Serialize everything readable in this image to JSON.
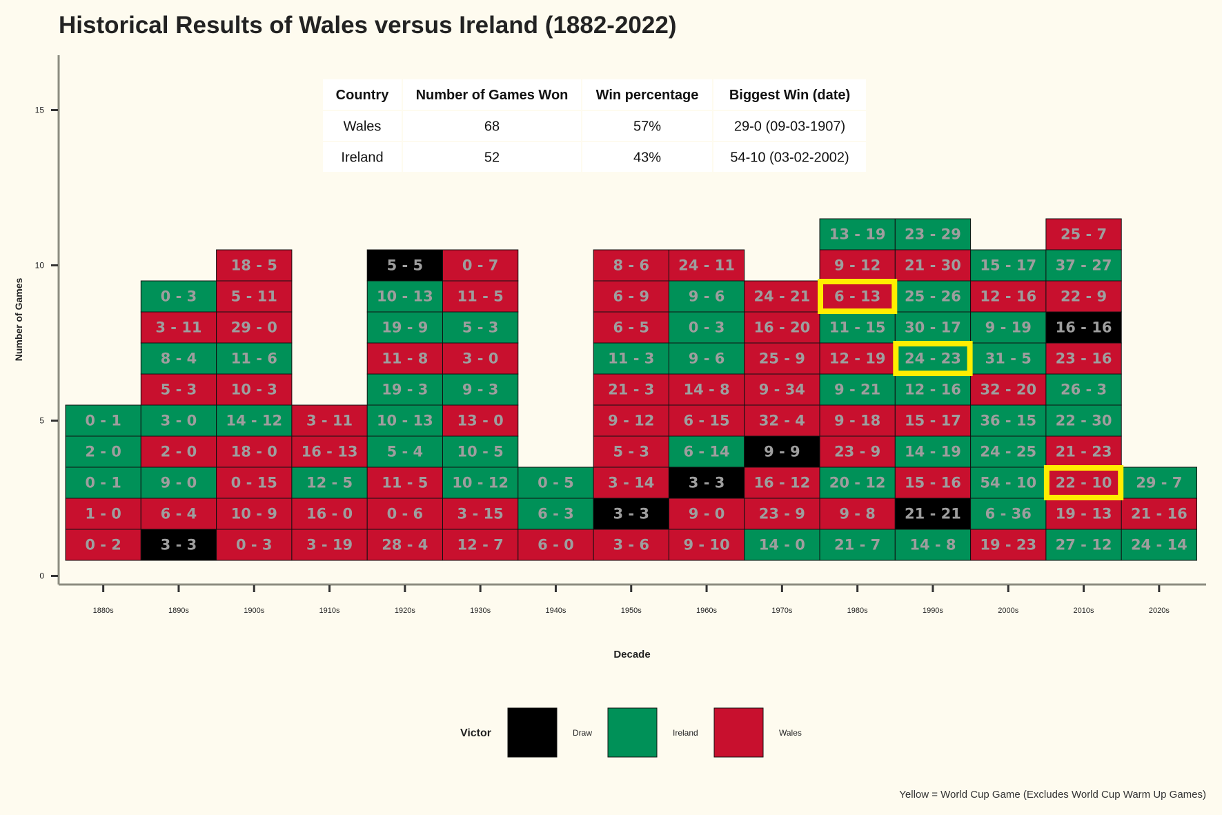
{
  "chart_data": {
    "type": "heatmap",
    "title": "Historical Results of Wales versus Ireland (1882-2022)",
    "xlabel": "Decade",
    "ylabel": "Number of Games",
    "ylim": [
      0,
      16.5
    ],
    "yticks": [
      0,
      5,
      10,
      15
    ],
    "grid": false,
    "legend_placement": "bottom",
    "legend": {
      "title": "Victor",
      "items": [
        {
          "label": "Draw",
          "color": "#000000"
        },
        {
          "label": "Ireland",
          "color": "#009158"
        },
        {
          "label": "Wales",
          "color": "#c8102e"
        }
      ]
    },
    "colors": {
      "D": "#000000",
      "I": "#009158",
      "W": "#c8102e",
      "highlight": "#ffee00",
      "label_text": "#9e9e9e"
    },
    "footnote": "Yellow = World Cup Game (Excludes World Cup Warm Up Games)",
    "summary_table": {
      "headers": [
        "Country",
        "Number of Games Won",
        "Win percentage",
        "Biggest Win (date)"
      ],
      "rows": [
        [
          "Wales",
          "68",
          "57%",
          "29-0 (09-03-1907)"
        ],
        [
          "Ireland",
          "52",
          "43%",
          "54-10 (03-02-2002)"
        ]
      ]
    },
    "decades": [
      {
        "label": "1880s",
        "games": [
          {
            "score": "0 - 2",
            "victor": "W"
          },
          {
            "score": "1 - 0",
            "victor": "W"
          },
          {
            "score": "0 - 1",
            "victor": "I"
          },
          {
            "score": "2 - 0",
            "victor": "I"
          },
          {
            "score": "0 - 1",
            "victor": "I"
          }
        ]
      },
      {
        "label": "1890s",
        "games": [
          {
            "score": "3 - 3",
            "victor": "D"
          },
          {
            "score": "6 - 4",
            "victor": "W"
          },
          {
            "score": "9 - 0",
            "victor": "I"
          },
          {
            "score": "2 - 0",
            "victor": "W"
          },
          {
            "score": "3 - 0",
            "victor": "I"
          },
          {
            "score": "5 - 3",
            "victor": "W"
          },
          {
            "score": "8 - 4",
            "victor": "I"
          },
          {
            "score": "3 - 11",
            "victor": "W"
          },
          {
            "score": "0 - 3",
            "victor": "I"
          }
        ]
      },
      {
        "label": "1900s",
        "games": [
          {
            "score": "0 - 3",
            "victor": "W"
          },
          {
            "score": "10 - 9",
            "victor": "W"
          },
          {
            "score": "0 - 15",
            "victor": "W"
          },
          {
            "score": "18 - 0",
            "victor": "W"
          },
          {
            "score": "14 - 12",
            "victor": "I"
          },
          {
            "score": "10 - 3",
            "victor": "W"
          },
          {
            "score": "11 - 6",
            "victor": "I"
          },
          {
            "score": "29 - 0",
            "victor": "W"
          },
          {
            "score": "5 - 11",
            "victor": "W"
          },
          {
            "score": "18 - 5",
            "victor": "W"
          }
        ]
      },
      {
        "label": "1910s",
        "games": [
          {
            "score": "3 - 19",
            "victor": "W"
          },
          {
            "score": "16 - 0",
            "victor": "W"
          },
          {
            "score": "12 - 5",
            "victor": "I"
          },
          {
            "score": "16 - 13",
            "victor": "W"
          },
          {
            "score": "3 - 11",
            "victor": "W"
          }
        ]
      },
      {
        "label": "1920s",
        "games": [
          {
            "score": "28 - 4",
            "victor": "W"
          },
          {
            "score": "0 - 6",
            "victor": "W"
          },
          {
            "score": "11 - 5",
            "victor": "W"
          },
          {
            "score": "5 - 4",
            "victor": "I"
          },
          {
            "score": "10 - 13",
            "victor": "I"
          },
          {
            "score": "19 - 3",
            "victor": "I"
          },
          {
            "score": "11 - 8",
            "victor": "W"
          },
          {
            "score": "19 - 9",
            "victor": "I"
          },
          {
            "score": "10 - 13",
            "victor": "I"
          },
          {
            "score": "5 - 5",
            "victor": "D"
          }
        ]
      },
      {
        "label": "1930s",
        "games": [
          {
            "score": "12 - 7",
            "victor": "W"
          },
          {
            "score": "3 - 15",
            "victor": "W"
          },
          {
            "score": "10 - 12",
            "victor": "I"
          },
          {
            "score": "10 - 5",
            "victor": "I"
          },
          {
            "score": "13 - 0",
            "victor": "W"
          },
          {
            "score": "9 - 3",
            "victor": "I"
          },
          {
            "score": "3 - 0",
            "victor": "W"
          },
          {
            "score": "5 - 3",
            "victor": "I"
          },
          {
            "score": "11 - 5",
            "victor": "W"
          },
          {
            "score": "0 - 7",
            "victor": "W"
          }
        ]
      },
      {
        "label": "1940s",
        "games": [
          {
            "score": "6 - 0",
            "victor": "W"
          },
          {
            "score": "6 - 3",
            "victor": "I"
          },
          {
            "score": "0 - 5",
            "victor": "I"
          }
        ]
      },
      {
        "label": "1950s",
        "games": [
          {
            "score": "3 - 6",
            "victor": "W"
          },
          {
            "score": "3 - 3",
            "victor": "D"
          },
          {
            "score": "3 - 14",
            "victor": "W"
          },
          {
            "score": "5 - 3",
            "victor": "W"
          },
          {
            "score": "9 - 12",
            "victor": "W"
          },
          {
            "score": "21 - 3",
            "victor": "W"
          },
          {
            "score": "11 - 3",
            "victor": "I"
          },
          {
            "score": "6 - 5",
            "victor": "W"
          },
          {
            "score": "6 - 9",
            "victor": "W"
          },
          {
            "score": "8 - 6",
            "victor": "W"
          }
        ]
      },
      {
        "label": "1960s",
        "games": [
          {
            "score": "9 - 10",
            "victor": "W"
          },
          {
            "score": "9 - 0",
            "victor": "W"
          },
          {
            "score": "3 - 3",
            "victor": "D"
          },
          {
            "score": "6 - 14",
            "victor": "I"
          },
          {
            "score": "6 - 15",
            "victor": "W"
          },
          {
            "score": "14 - 8",
            "victor": "W"
          },
          {
            "score": "9 - 6",
            "victor": "I"
          },
          {
            "score": "0 - 3",
            "victor": "I"
          },
          {
            "score": "9 - 6",
            "victor": "I"
          },
          {
            "score": "24 - 11",
            "victor": "W"
          }
        ]
      },
      {
        "label": "1970s",
        "games": [
          {
            "score": "14 - 0",
            "victor": "I"
          },
          {
            "score": "23 - 9",
            "victor": "W"
          },
          {
            "score": "16 - 12",
            "victor": "W"
          },
          {
            "score": "9 - 9",
            "victor": "D"
          },
          {
            "score": "32 - 4",
            "victor": "W"
          },
          {
            "score": "9 - 34",
            "victor": "W"
          },
          {
            "score": "25 - 9",
            "victor": "W"
          },
          {
            "score": "16 - 20",
            "victor": "W"
          },
          {
            "score": "24 - 21",
            "victor": "W"
          }
        ]
      },
      {
        "label": "1980s",
        "games": [
          {
            "score": "21 - 7",
            "victor": "I"
          },
          {
            "score": "9 - 8",
            "victor": "W"
          },
          {
            "score": "20 - 12",
            "victor": "I"
          },
          {
            "score": "23 - 9",
            "victor": "W"
          },
          {
            "score": "9 - 18",
            "victor": "W"
          },
          {
            "score": "9 - 21",
            "victor": "I"
          },
          {
            "score": "12 - 19",
            "victor": "W"
          },
          {
            "score": "11 - 15",
            "victor": "I"
          },
          {
            "score": "6 - 13",
            "victor": "W",
            "world_cup": true
          },
          {
            "score": "9 - 12",
            "victor": "W"
          },
          {
            "score": "13 - 19",
            "victor": "I"
          }
        ]
      },
      {
        "label": "1990s",
        "games": [
          {
            "score": "14 - 8",
            "victor": "I"
          },
          {
            "score": "21 - 21",
            "victor": "D"
          },
          {
            "score": "15 - 16",
            "victor": "W"
          },
          {
            "score": "14 - 19",
            "victor": "I"
          },
          {
            "score": "15 - 17",
            "victor": "W"
          },
          {
            "score": "12 - 16",
            "victor": "I"
          },
          {
            "score": "24 - 23",
            "victor": "I",
            "world_cup": true
          },
          {
            "score": "30 - 17",
            "victor": "I"
          },
          {
            "score": "25 - 26",
            "victor": "I"
          },
          {
            "score": "21 - 30",
            "victor": "W"
          },
          {
            "score": "23 - 29",
            "victor": "I"
          }
        ]
      },
      {
        "label": "2000s",
        "games": [
          {
            "score": "19 - 23",
            "victor": "W"
          },
          {
            "score": "6 - 36",
            "victor": "I"
          },
          {
            "score": "54 - 10",
            "victor": "I"
          },
          {
            "score": "24 - 25",
            "victor": "I"
          },
          {
            "score": "36 - 15",
            "victor": "I"
          },
          {
            "score": "32 - 20",
            "victor": "W"
          },
          {
            "score": "31 - 5",
            "victor": "I"
          },
          {
            "score": "9 - 19",
            "victor": "I"
          },
          {
            "score": "12 - 16",
            "victor": "W"
          },
          {
            "score": "15 - 17",
            "victor": "I"
          }
        ]
      },
      {
        "label": "2010s",
        "games": [
          {
            "score": "27 - 12",
            "victor": "I"
          },
          {
            "score": "19 - 13",
            "victor": "W"
          },
          {
            "score": "22 - 10",
            "victor": "W",
            "world_cup": true
          },
          {
            "score": "21 - 23",
            "victor": "W"
          },
          {
            "score": "22 - 30",
            "victor": "I"
          },
          {
            "score": "26 - 3",
            "victor": "I"
          },
          {
            "score": "23 - 16",
            "victor": "W"
          },
          {
            "score": "16 - 16",
            "victor": "D"
          },
          {
            "score": "22 - 9",
            "victor": "W"
          },
          {
            "score": "37 - 27",
            "victor": "I"
          },
          {
            "score": "25 - 7",
            "victor": "W"
          }
        ]
      },
      {
        "label": "2020s",
        "games": [
          {
            "score": "24 - 14",
            "victor": "I"
          },
          {
            "score": "21 - 16",
            "victor": "W"
          },
          {
            "score": "29 - 7",
            "victor": "I"
          }
        ]
      }
    ]
  }
}
